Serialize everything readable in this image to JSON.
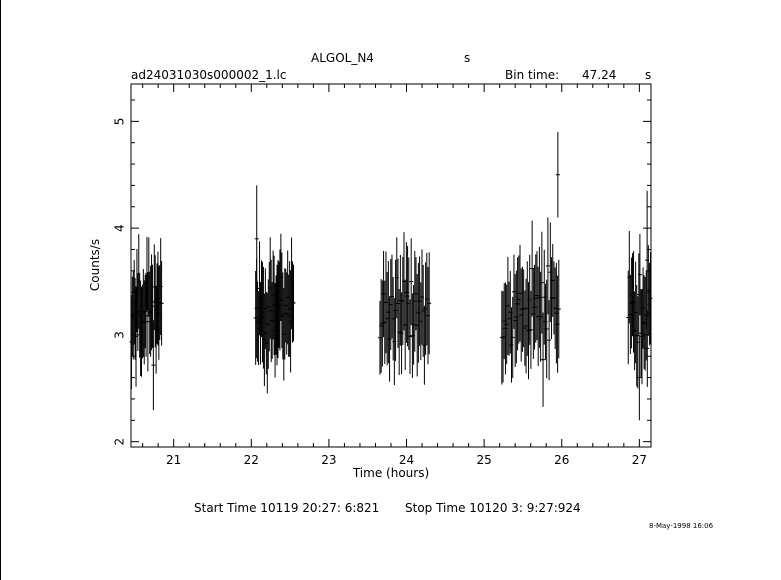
{
  "header": {
    "title_left": "ALGOL_N4",
    "title_right": "s",
    "filename": "ad24031030s000002_1.lc",
    "bin_label": "Bin time:",
    "bin_value": "47.24",
    "bin_unit": "s"
  },
  "footer": {
    "start_time": "Start Time 10119 20:27: 6:821",
    "stop_time": "Stop Time 10120   3: 9:27:924",
    "date_stamp": "8-May-1998 16:06"
  },
  "chart_data": {
    "type": "scatter",
    "title": "ALGOL_N4",
    "xlabel": "Time (hours)",
    "ylabel": "Counts/s",
    "xlim": [
      20.45,
      27.15
    ],
    "ylim": [
      1.95,
      5.35
    ],
    "xticks": [
      21,
      22,
      23,
      24,
      25,
      26,
      27
    ],
    "yticks": [
      2,
      3,
      4,
      5
    ],
    "grid": false,
    "legend": "none",
    "error_bars": true,
    "segments": [
      {
        "name": "segment-1",
        "t_start": 20.45,
        "t_end": 20.85,
        "n": 34,
        "seed": 11
      },
      {
        "name": "segment-2",
        "t_start": 22.05,
        "t_end": 22.55,
        "n": 40,
        "seed": 23
      },
      {
        "name": "segment-3",
        "t_start": 23.65,
        "t_end": 24.3,
        "n": 42,
        "seed": 37
      },
      {
        "name": "segment-4",
        "t_start": 25.22,
        "t_end": 25.97,
        "n": 48,
        "seed": 53
      },
      {
        "name": "segment-5",
        "t_start": 26.85,
        "t_end": 27.15,
        "n": 22,
        "seed": 71
      }
    ],
    "mean_rate": 3.25,
    "rate_scatter": 0.25,
    "error_half_width": 0.4,
    "notable_points": [
      {
        "x": 22.07,
        "y": 3.9,
        "err": 0.5
      },
      {
        "x": 25.95,
        "y": 4.5,
        "err": 0.4
      },
      {
        "x": 27.1,
        "y": 3.7,
        "err": 0.65
      },
      {
        "x": 27.0,
        "y": 2.6,
        "err": 0.4
      }
    ]
  }
}
